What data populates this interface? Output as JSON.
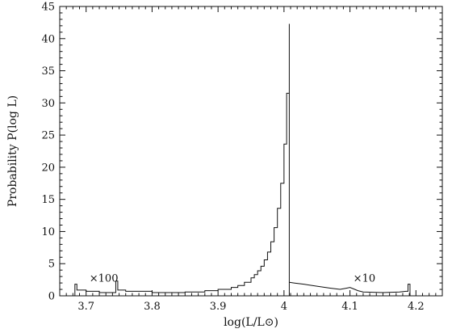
{
  "chart_data": {
    "type": "line",
    "xlabel": "log(L/L⊙)",
    "ylabel": "Probability  P(log L)",
    "xlim": [
      3.66,
      4.24
    ],
    "ylim": [
      0,
      45
    ],
    "x_ticks": [
      3.7,
      3.8,
      3.9,
      4.0,
      4.1,
      4.2
    ],
    "x_tick_labels": [
      "3.7",
      "3.8",
      "3.9",
      "4",
      "4.1",
      "4.2"
    ],
    "y_ticks": [
      0,
      5,
      10,
      15,
      20,
      25,
      30,
      35,
      40,
      45
    ],
    "y_tick_labels": [
      "0",
      "5",
      "10",
      "15",
      "20",
      "25",
      "30",
      "35",
      "40",
      "45"
    ],
    "grid": false,
    "annotations": [
      {
        "text": "×100",
        "x": 3.705,
        "y": 2.2
      },
      {
        "text": "×10",
        "x": 4.105,
        "y": 2.2
      }
    ],
    "series": [
      {
        "style": "step",
        "x": [
          3.676,
          3.683,
          3.683,
          3.686,
          3.686,
          3.7,
          3.72,
          3.745,
          3.745,
          3.748,
          3.748,
          3.76,
          3.8,
          3.85,
          3.88,
          3.9,
          3.92,
          3.93,
          3.94,
          3.95,
          3.955,
          3.96,
          3.965,
          3.97,
          3.975,
          3.98,
          3.985,
          3.99,
          3.995,
          4.0,
          4.004,
          4.008,
          4.008
        ],
        "y": [
          0,
          0,
          1.8,
          1.8,
          0.9,
          0.7,
          0.5,
          0.5,
          2.3,
          2.3,
          0.9,
          0.7,
          0.5,
          0.6,
          0.8,
          1.0,
          1.3,
          1.6,
          2.1,
          2.8,
          3.3,
          3.9,
          4.6,
          5.6,
          6.8,
          8.4,
          10.6,
          13.6,
          17.5,
          23.6,
          31.5,
          42.3,
          0
        ]
      },
      {
        "style": "line",
        "x": [
          4.008,
          4.015,
          4.03,
          4.05,
          4.07,
          4.085,
          4.095,
          4.1,
          4.105,
          4.112,
          4.12,
          4.15,
          4.175,
          4.185,
          4.188,
          4.188,
          4.191,
          4.191
        ],
        "y": [
          2.1,
          2.0,
          1.8,
          1.5,
          1.2,
          1.0,
          1.2,
          1.3,
          1.1,
          0.8,
          0.6,
          0.5,
          0.6,
          0.7,
          0.7,
          1.8,
          1.8,
          0
        ]
      }
    ]
  }
}
